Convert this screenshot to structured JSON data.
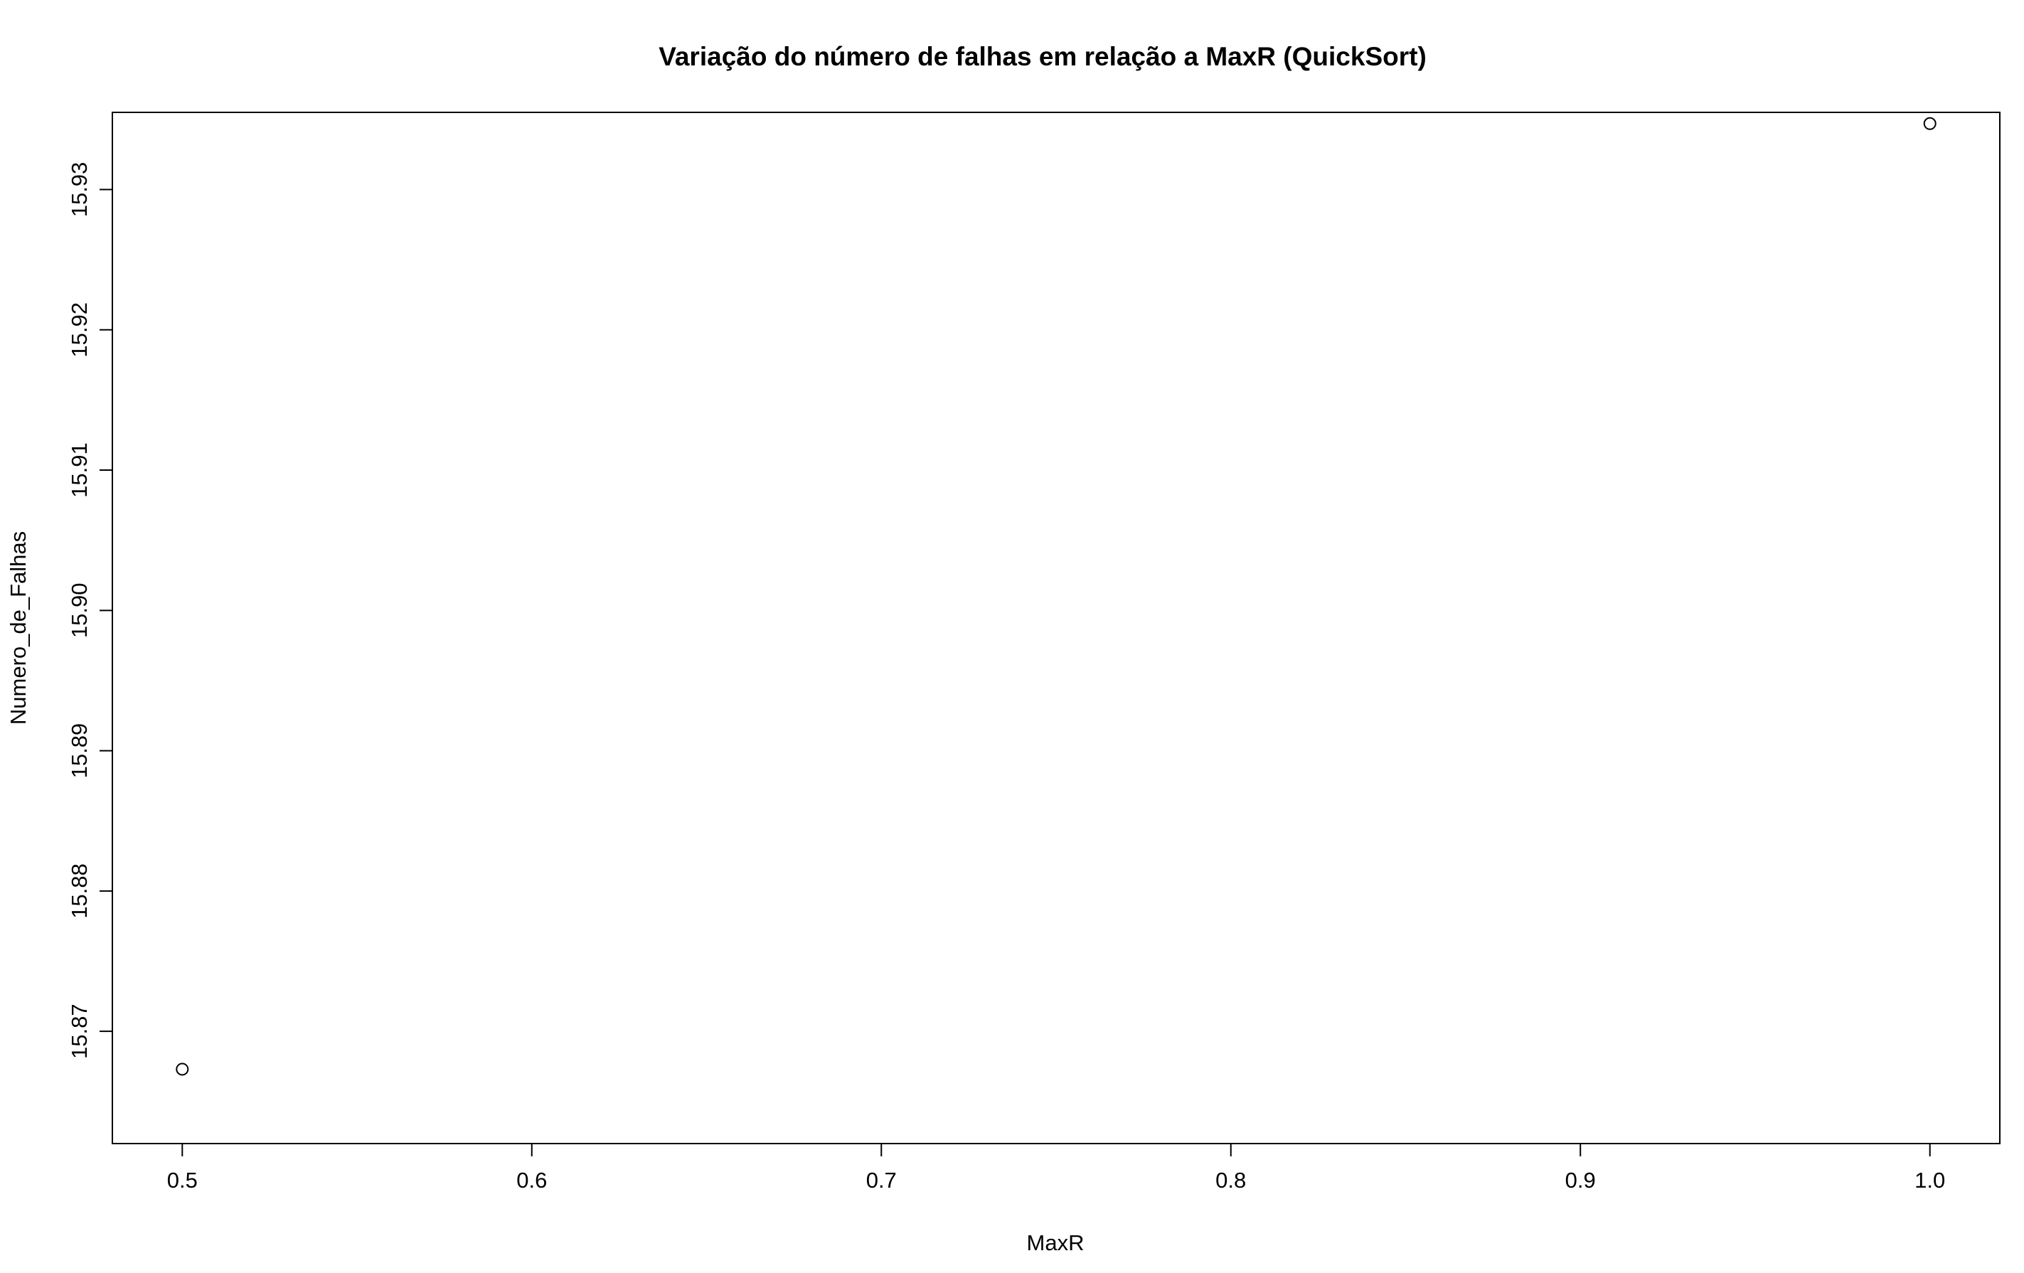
{
  "chart_data": {
    "type": "scatter",
    "title": "Variação do número de falhas em relação a MaxR (QuickSort)",
    "xlabel": "MaxR",
    "ylabel": "Numero_de_Falhas",
    "x": [
      0.5,
      1.0
    ],
    "y": [
      15.8673,
      15.9347
    ],
    "xlim": [
      0.48,
      1.02
    ],
    "ylim": [
      15.862,
      15.9355
    ],
    "x_ticks": [
      0.5,
      0.6,
      0.7,
      0.8,
      0.9,
      1.0
    ],
    "x_tick_labels": [
      "0.5",
      "0.6",
      "0.7",
      "0.8",
      "0.9",
      "1.0"
    ],
    "y_ticks": [
      15.87,
      15.88,
      15.89,
      15.9,
      15.91,
      15.92,
      15.93
    ],
    "y_tick_labels": [
      "15.87",
      "15.88",
      "15.89",
      "15.90",
      "15.91",
      "15.92",
      "15.93"
    ],
    "grid": false,
    "legend": "none",
    "marker": "open-circle",
    "colors": {
      "points": "#000000",
      "axes": "#000000",
      "background": "#ffffff"
    }
  }
}
